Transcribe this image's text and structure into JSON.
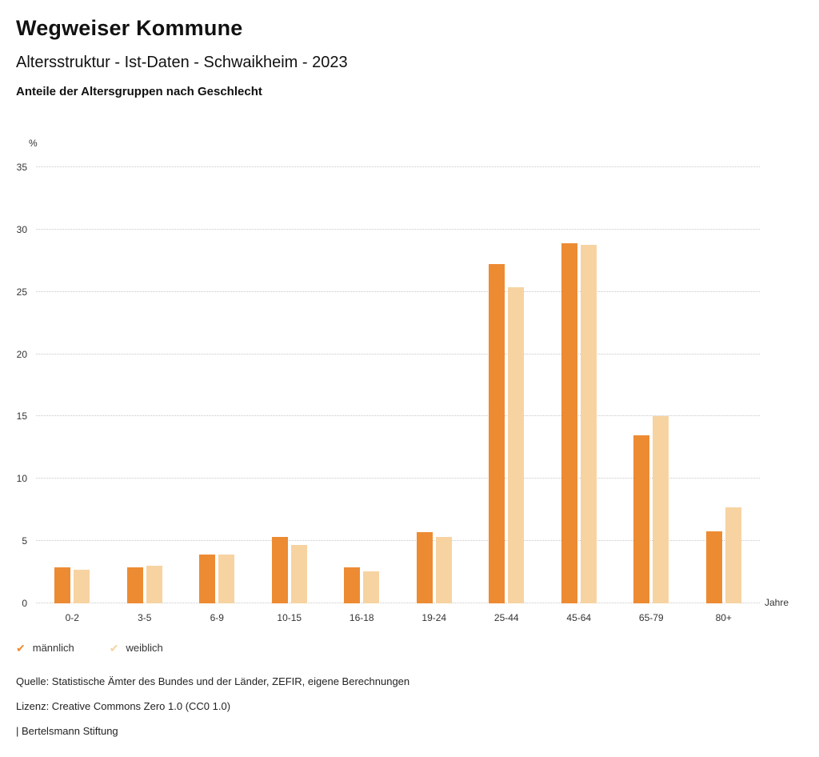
{
  "header": {
    "title": "Wegweiser Kommune",
    "subtitle": "Altersstruktur - Ist-Daten - Schwaikheim - 2023",
    "chart_heading": "Anteile der Altersgruppen nach Geschlecht"
  },
  "chart_data": {
    "type": "bar",
    "title": "Anteile der Altersgruppen nach Geschlecht",
    "categories": [
      "0-2",
      "3-5",
      "6-9",
      "10-15",
      "16-18",
      "19-24",
      "25-44",
      "45-64",
      "65-79",
      "80+"
    ],
    "series": [
      {
        "name": "männlich",
        "color": "#ED8B33",
        "values": [
          2.9,
          2.9,
          3.9,
          5.3,
          2.9,
          5.7,
          27.2,
          28.9,
          13.5,
          5.8
        ]
      },
      {
        "name": "weiblich",
        "color": "#F7D3A2",
        "values": [
          2.7,
          3.0,
          3.9,
          4.7,
          2.6,
          5.3,
          25.4,
          28.8,
          15.0,
          7.7
        ]
      }
    ],
    "ylabel": "%",
    "xlabel": "Jahre",
    "ylim": [
      0,
      35
    ],
    "ytick_step": 5,
    "grid": true,
    "gridline_style": "dotted",
    "legend_position": "bottom"
  },
  "legend": {
    "marker": "✔"
  },
  "footer": {
    "source": "Quelle: Statistische Ämter des Bundes und der Länder, ZEFIR, eigene Berechnungen",
    "license": "Lizenz: Creative Commons Zero 1.0 (CC0 1.0)",
    "attribution": "| Bertelsmann Stiftung"
  }
}
